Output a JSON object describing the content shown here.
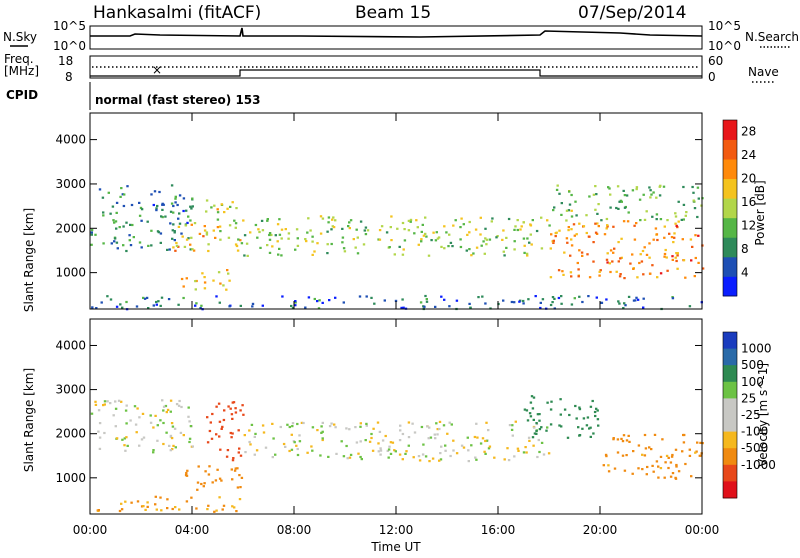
{
  "header": {
    "station": "Hankasalmi (fitACF)",
    "beam": "Beam 15",
    "date": "07/Sep/2014"
  },
  "strip_labels": {
    "nsky": "N.Sky",
    "nsky_ticks": [
      "10^5",
      "10^0"
    ],
    "nsearch": "N.Search",
    "nsearch_ticks": [
      "10^5",
      "10^0"
    ],
    "freq_line1": "Freq.",
    "freq_line2": "[MHz]",
    "freq_ticks": [
      "18",
      "8"
    ],
    "nave": "Nave",
    "nave_ticks": [
      "60",
      "0"
    ],
    "cpid": "CPID",
    "cpid_text": "normal (fast stereo) 153"
  },
  "colors": {
    "power_scale": [
      "#0a1eff",
      "#1e4fb4",
      "#2e8a5a",
      "#55b646",
      "#b2d64a",
      "#f4c31e",
      "#ff8a0a",
      "#f25a10",
      "#e8161a"
    ],
    "velocity_scale": [
      "#1a3cbe",
      "#2a6aa8",
      "#2e8a52",
      "#6cc244",
      "#c8c8c4",
      "#c8c8c4",
      "#f5b81e",
      "#f08a10",
      "#e8481a",
      "#e0101a"
    ]
  },
  "chart_data": [
    {
      "type": "heatmap",
      "name": "power",
      "xlabel": "",
      "ylabel": "Slant Range [km]",
      "xlim": [
        "00:00",
        "24:00"
      ],
      "ylim": [
        180,
        4600
      ],
      "x_ticks": [
        "00:00",
        "04:00",
        "08:00",
        "12:00",
        "16:00",
        "20:00",
        "00:00"
      ],
      "y_ticks": [
        1000,
        2000,
        3000,
        4000
      ],
      "colorbar_label": "Power [dB]",
      "colorbar_ticks": [
        4,
        8,
        12,
        16,
        20,
        24,
        28
      ],
      "colorbar_range": [
        0,
        30
      ],
      "scatter_regions": [
        {
          "t0": 0.0,
          "t1": 4.0,
          "r0": 1500,
          "r1": 3000,
          "value": 8
        },
        {
          "t0": 3.2,
          "t1": 5.0,
          "r0": 1500,
          "r1": 2200,
          "value": 20
        },
        {
          "t0": 3.5,
          "t1": 5.5,
          "r0": 600,
          "r1": 1100,
          "value": 18
        },
        {
          "t0": 4.5,
          "t1": 6.0,
          "r0": 1500,
          "r1": 2700,
          "value": 16
        },
        {
          "t0": 6.0,
          "t1": 18.0,
          "r0": 1400,
          "r1": 2300,
          "value": 14
        },
        {
          "t0": 18.0,
          "t1": 24.0,
          "r0": 900,
          "r1": 2200,
          "value": 22
        },
        {
          "t0": 18.0,
          "t1": 24.0,
          "r0": 2200,
          "r1": 3000,
          "value": 12
        },
        {
          "t0": 0.0,
          "t1": 24.0,
          "r0": 200,
          "r1": 500,
          "value": 6
        }
      ]
    },
    {
      "type": "heatmap",
      "name": "velocity",
      "xlabel": "Time UT",
      "ylabel": "Slant Range [km]",
      "xlim": [
        "00:00",
        "24:00"
      ],
      "ylim": [
        180,
        4600
      ],
      "x_ticks": [
        "00:00",
        "04:00",
        "08:00",
        "12:00",
        "16:00",
        "20:00",
        "00:00"
      ],
      "y_ticks": [
        1000,
        2000,
        3000,
        4000
      ],
      "colorbar_label": "Velocity [m s^-1]",
      "colorbar_tick_labels": [
        "1000",
        "500",
        "100",
        "25",
        "-25",
        "-100",
        "-500",
        "-1000"
      ],
      "scatter_regions": [
        {
          "t0": 0.0,
          "t1": 4.0,
          "r0": 1600,
          "r1": 2800,
          "value": 0
        },
        {
          "t0": 3.5,
          "t1": 6.0,
          "r0": 700,
          "r1": 1300,
          "value": -150
        },
        {
          "t0": 4.5,
          "t1": 6.0,
          "r0": 1400,
          "r1": 2800,
          "value": -600
        },
        {
          "t0": 6.0,
          "t1": 18.0,
          "r0": 1400,
          "r1": 2300,
          "value": 0
        },
        {
          "t0": 17.0,
          "t1": 20.0,
          "r0": 1900,
          "r1": 2900,
          "value": 300
        },
        {
          "t0": 20.0,
          "t1": 24.0,
          "r0": 1000,
          "r1": 2000,
          "value": -150
        },
        {
          "t0": 0.0,
          "t1": 6.0,
          "r0": 250,
          "r1": 600,
          "value": -120
        }
      ]
    }
  ]
}
